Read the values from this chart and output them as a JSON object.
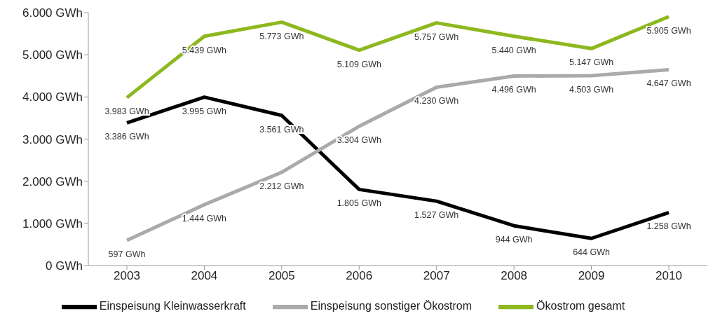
{
  "chart_data": {
    "type": "line",
    "categories": [
      "2003",
      "2004",
      "2005",
      "2006",
      "2007",
      "2008",
      "2009",
      "2010"
    ],
    "ylim": [
      0,
      6000
    ],
    "yticks": [
      {
        "value": 0,
        "label": "0 GWh"
      },
      {
        "value": 1000,
        "label": "1.000 GWh"
      },
      {
        "value": 2000,
        "label": "2.000 GWh"
      },
      {
        "value": 3000,
        "label": "3.000 GWh"
      },
      {
        "value": 4000,
        "label": "4.000 GWh"
      },
      {
        "value": 5000,
        "label": "5.000 GWh"
      },
      {
        "value": 6000,
        "label": "6.000 GWh"
      }
    ],
    "grid": false,
    "legend": "bottom",
    "marker": "none",
    "line_style": "solid",
    "series": [
      {
        "name": "Einspeisung Kleinwasserkraft",
        "color": "#000000",
        "values": [
          3386,
          3995,
          3561,
          1805,
          1527,
          944,
          644,
          1258
        ],
        "value_labels": [
          "3.386 GWh",
          "3.995 GWh",
          "3.561 GWh",
          "1.805 GWh",
          "1.527 GWh",
          "944 GWh",
          "644 GWh",
          "1.258 GWh"
        ]
      },
      {
        "name": "Einspeisung sonstiger Ökostrom",
        "color": "#aaaaaa",
        "values": [
          597,
          1444,
          2212,
          3304,
          4230,
          4496,
          4503,
          4647
        ],
        "value_labels": [
          "597 GWh",
          "1.444 GWh",
          "2.212 GWh",
          "3.304 GWh",
          "4.230 GWh",
          "4.496 GWh",
          "4.503 GWh",
          "4.647 GWh"
        ]
      },
      {
        "name": "Ökostrom gesamt",
        "color": "#8db81e",
        "values": [
          3983,
          5439,
          5773,
          5109,
          5757,
          5440,
          5147,
          5905
        ],
        "value_labels": [
          "3.983 GWh",
          "5.439 GWh",
          "5.773 GWh",
          "5.109 GWh",
          "5.757 GWh",
          "5.440 GWh",
          "5.147 GWh",
          "5.905 GWh"
        ]
      }
    ]
  }
}
